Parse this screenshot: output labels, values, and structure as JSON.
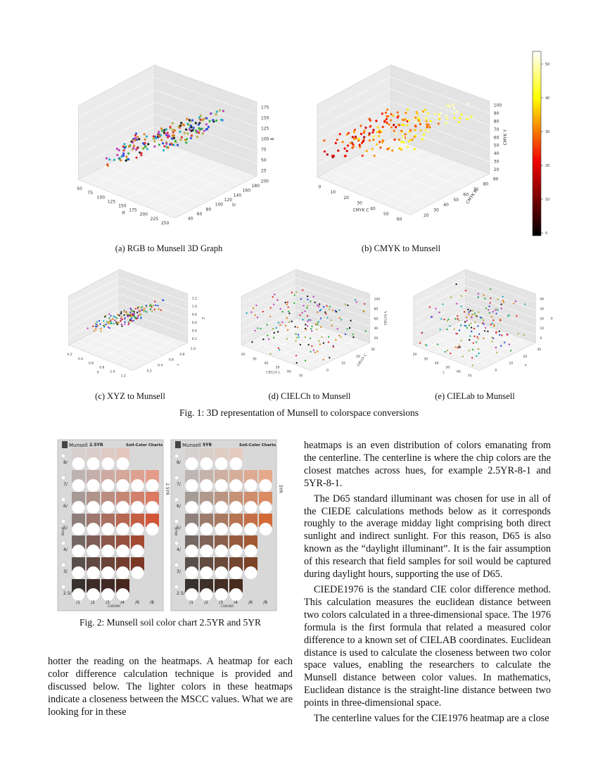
{
  "figure1": {
    "caption": "Fig. 1: 3D representation of Munsell to colorspace conversions",
    "panels": [
      {
        "caption": "(a) RGB to Munsell 3D Graph",
        "x_label": "R",
        "x_ticks": [
          "50",
          "75",
          "100",
          "125",
          "150",
          "175",
          "200",
          "225",
          "250"
        ],
        "y_label": "G",
        "y_ticks": [
          "40",
          "60",
          "80",
          "100",
          "120",
          "140",
          "160",
          "180",
          "200"
        ],
        "z_label": "B",
        "z_ticks": [
          "25",
          "50",
          "75",
          "100",
          "125",
          "150",
          "175"
        ]
      },
      {
        "caption": "(b) CMYK to Munsell",
        "x_label": "CMYK C",
        "x_ticks": [
          "0",
          "10",
          "20",
          "30",
          "40",
          "50",
          "60"
        ],
        "y_label": "CMYK M",
        "y_ticks": [
          "20",
          "30",
          "40",
          "50",
          "60",
          "70",
          "80",
          "90"
        ],
        "z_label": "CMYK Y",
        "z_ticks": [
          "20",
          "30",
          "40",
          "50",
          "60",
          "70",
          "80",
          "90",
          "100"
        ],
        "colorbar_ticks": [
          "0",
          "10",
          "20",
          "30",
          "40",
          "50"
        ]
      },
      {
        "caption": "(c) XYZ to Munsell",
        "x_label": "X",
        "x_ticks": [
          "0.2",
          "0.4",
          "0.6",
          "0.8",
          "1.0",
          "1.2"
        ],
        "y_label": "Y",
        "y_ticks": [
          "0.2",
          "0.4",
          "0.6",
          "0.8",
          "1.0"
        ],
        "z_label": "Z",
        "z_ticks": [
          "0.2",
          "0.4",
          "0.6",
          "0.8",
          "1.0",
          "1.2"
        ]
      },
      {
        "caption": "(d) CIELCh to Munsell",
        "x_label": "CIELCh L",
        "x_ticks": [
          "20",
          "30",
          "40",
          "50",
          "60",
          "70"
        ],
        "y_label": "CIELCh C",
        "y_ticks": [
          "0",
          "10",
          "20",
          "30"
        ],
        "z_label": "CIELCh h",
        "z_ticks": [
          "20",
          "40",
          "60",
          "80",
          "100"
        ]
      },
      {
        "caption": "(e) CIELab to Munsell",
        "x_label": "L",
        "x_ticks": [
          "20",
          "30",
          "40",
          "50",
          "60",
          "70"
        ],
        "y_label": "a",
        "y_ticks": [
          "0",
          "10",
          "20",
          "30"
        ],
        "z_label": "b",
        "z_ticks": [
          "0",
          "10",
          "20",
          "30",
          "40"
        ]
      }
    ]
  },
  "figure2": {
    "caption": "Fig. 2: Munsell soil color chart 2.5YR and 5YR",
    "charts": [
      {
        "brand": "Munsell",
        "hue": "2.5YR",
        "title": "Soil-Color Charts",
        "value_label": "VALUE",
        "chroma_label": "CHROMA",
        "values": [
          "8/",
          "7/",
          "6/",
          "5/",
          "4/",
          "3/",
          "2.5/"
        ],
        "chromas": [
          "/1",
          "/2",
          "/3",
          "/4",
          "/6",
          "/8"
        ]
      },
      {
        "brand": "Munsell",
        "hue": "5YR",
        "title": "Soil-Color Charts",
        "value_label": "VALUE",
        "chroma_label": "CHROMA",
        "values": [
          "8/",
          "7/",
          "6/",
          "5/",
          "4/",
          "3/",
          "2.5/"
        ],
        "chromas": [
          "/1",
          "/2",
          "/3",
          "/4",
          "/6",
          "/8"
        ]
      }
    ]
  },
  "left_column": [
    "hotter the reading on the heatmaps. A heatmap for each color difference calculation technique is provided and discussed below. The lighter colors in these heatmaps indicate a closeness between the MSCC values. What we are looking for in these"
  ],
  "right_column": [
    "heatmaps is an even distribution of colors emanating from the centerline. The centerline is where the chip colors are the closest matches across hues, for example 2.5YR-8-1 and 5YR-8-1.",
    "The D65 standard illuminant was chosen for use in all of the CIEDE calculations methods below as it corresponds roughly to the average midday light comprising both direct sunlight and indirect sunlight. For this reason, D65 is also known as the “daylight illuminant”. It is the fair assumption of this research that field samples for soil would be captured during daylight hours, supporting the use of D65.",
    "CIEDE1976 is the standard CIE color difference method. This calculation measures the euclidean distance between two colors calculated in a three-dimensional space. The 1976 formula is the first formula that related a measured color difference to a known set of CIELAB coordinates. Euclidean distance is used to calculate the closeness between two color space values, enabling the researchers to calculate the Munsell distance between color values. In mathematics, Euclidean distance is the straight-line distance between two points in three-dimensional space.",
    "The centerline values for the CIE1976 heatmap are a close"
  ]
}
